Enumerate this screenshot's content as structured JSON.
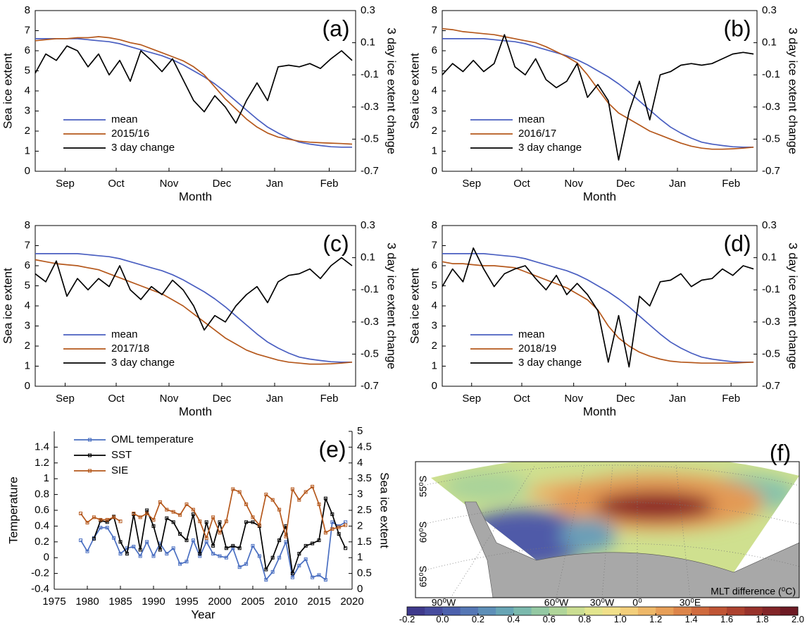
{
  "chart_data": [
    {
      "type": "line",
      "title": "(a)",
      "xlabel": "Month",
      "ylabel": "Sea ice extent",
      "y2label": "3 day ice extent change",
      "legend": "lower left",
      "x": [
        0,
        6,
        12,
        18,
        24,
        30,
        36,
        42,
        48,
        54,
        60,
        66,
        72,
        78,
        84,
        90,
        96,
        102,
        108,
        114,
        120,
        126,
        132,
        138,
        144,
        150,
        156,
        162,
        168,
        174,
        180
      ],
      "xlim": [
        0,
        182
      ],
      "xticks": [
        {
          "value": 17,
          "label": "Sep"
        },
        {
          "value": 46,
          "label": "Oct"
        },
        {
          "value": 76,
          "label": "Nov"
        },
        {
          "value": 106,
          "label": "Dec"
        },
        {
          "value": 136,
          "label": "Jan"
        },
        {
          "value": 167,
          "label": "Feb"
        }
      ],
      "ylim": [
        0,
        8
      ],
      "yticks": [
        0,
        1,
        2,
        3,
        4,
        5,
        6,
        7,
        8
      ],
      "y2lim": [
        -0.7,
        0.3
      ],
      "y2ticks": [
        -0.7,
        -0.5,
        -0.3,
        -0.1,
        0.1,
        0.3
      ],
      "series": [
        {
          "name": "mean",
          "color": "#4a5fc1",
          "values": [
            6.6,
            6.6,
            6.6,
            6.6,
            6.6,
            6.55,
            6.5,
            6.45,
            6.35,
            6.2,
            6.05,
            5.9,
            5.75,
            5.55,
            5.3,
            5.0,
            4.7,
            4.35,
            3.95,
            3.5,
            3.05,
            2.6,
            2.2,
            1.9,
            1.65,
            1.45,
            1.35,
            1.28,
            1.22,
            1.2,
            1.2
          ]
        },
        {
          "name": "2015/16",
          "color": "#b5581c",
          "values": [
            6.5,
            6.55,
            6.6,
            6.6,
            6.65,
            6.65,
            6.7,
            6.65,
            6.55,
            6.4,
            6.3,
            6.1,
            5.9,
            5.7,
            5.5,
            5.2,
            4.8,
            4.2,
            3.6,
            3.1,
            2.6,
            2.2,
            1.9,
            1.7,
            1.6,
            1.5,
            1.45,
            1.42,
            1.4,
            1.38,
            1.35
          ]
        },
        {
          "name": "3 day change",
          "color": "#000000",
          "axis": "y2",
          "values": [
            -0.09,
            0.03,
            -0.01,
            0.08,
            0.05,
            -0.05,
            0.03,
            -0.1,
            -0.01,
            -0.14,
            0.05,
            -0.01,
            -0.08,
            0,
            -0.13,
            -0.26,
            -0.33,
            -0.23,
            -0.3,
            -0.4,
            -0.26,
            -0.15,
            -0.26,
            -0.05,
            -0.04,
            -0.05,
            -0.03,
            -0.06,
            0,
            0.05,
            -0.01
          ]
        }
      ]
    },
    {
      "type": "line",
      "title": "(b)",
      "xlabel": "Month",
      "ylabel": "Sea ice extent",
      "y2label": "3 day ice extent change",
      "legend": "lower left",
      "x": [
        0,
        6,
        12,
        18,
        24,
        30,
        36,
        42,
        48,
        54,
        60,
        66,
        72,
        78,
        84,
        90,
        96,
        102,
        108,
        114,
        120,
        126,
        132,
        138,
        144,
        150,
        156,
        162,
        168,
        174,
        180
      ],
      "xlim": [
        0,
        182
      ],
      "xticks": [
        {
          "value": 17,
          "label": "Sep"
        },
        {
          "value": 46,
          "label": "Oct"
        },
        {
          "value": 76,
          "label": "Nov"
        },
        {
          "value": 106,
          "label": "Dec"
        },
        {
          "value": 136,
          "label": "Jan"
        },
        {
          "value": 167,
          "label": "Feb"
        }
      ],
      "ylim": [
        0,
        8
      ],
      "yticks": [
        0,
        1,
        2,
        3,
        4,
        5,
        6,
        7,
        8
      ],
      "y2lim": [
        -0.7,
        0.3
      ],
      "y2ticks": [
        -0.7,
        -0.5,
        -0.3,
        -0.1,
        0.1,
        0.3
      ],
      "series": [
        {
          "name": "mean",
          "color": "#4a5fc1",
          "values": [
            6.6,
            6.6,
            6.6,
            6.6,
            6.6,
            6.55,
            6.5,
            6.45,
            6.35,
            6.2,
            6.05,
            5.9,
            5.75,
            5.55,
            5.3,
            5.0,
            4.7,
            4.35,
            3.95,
            3.5,
            3.05,
            2.6,
            2.2,
            1.9,
            1.65,
            1.45,
            1.35,
            1.28,
            1.22,
            1.2,
            1.2
          ]
        },
        {
          "name": "2016/17",
          "color": "#b5581c",
          "values": [
            7.1,
            7.05,
            6.95,
            6.9,
            6.85,
            6.8,
            6.7,
            6.6,
            6.5,
            6.4,
            6.2,
            5.95,
            5.7,
            5.4,
            4.8,
            4.1,
            3.4,
            2.9,
            2.6,
            2.3,
            2.0,
            1.8,
            1.6,
            1.4,
            1.25,
            1.15,
            1.1,
            1.1,
            1.12,
            1.15,
            1.2
          ]
        },
        {
          "name": "3 day change",
          "color": "#000000",
          "axis": "y2",
          "values": [
            -0.1,
            -0.03,
            -0.08,
            -0.01,
            -0.08,
            -0.03,
            0.15,
            -0.05,
            -0.1,
            0,
            -0.13,
            -0.18,
            -0.14,
            -0.03,
            -0.24,
            -0.16,
            -0.26,
            -0.63,
            -0.33,
            -0.14,
            -0.38,
            -0.1,
            -0.08,
            -0.04,
            -0.03,
            -0.04,
            -0.03,
            0,
            0.03,
            0.04,
            0.03
          ]
        }
      ]
    },
    {
      "type": "line",
      "title": "(c)",
      "xlabel": "Month",
      "ylabel": "Sea ice extent",
      "y2label": "3 day ice extent change",
      "legend": "lower left",
      "x": [
        0,
        6,
        12,
        18,
        24,
        30,
        36,
        42,
        48,
        54,
        60,
        66,
        72,
        78,
        84,
        90,
        96,
        102,
        108,
        114,
        120,
        126,
        132,
        138,
        144,
        150,
        156,
        162,
        168,
        174,
        180
      ],
      "xlim": [
        0,
        182
      ],
      "xticks": [
        {
          "value": 17,
          "label": "Sep"
        },
        {
          "value": 46,
          "label": "Oct"
        },
        {
          "value": 76,
          "label": "Nov"
        },
        {
          "value": 106,
          "label": "Dec"
        },
        {
          "value": 136,
          "label": "Jan"
        },
        {
          "value": 167,
          "label": "Feb"
        }
      ],
      "ylim": [
        0,
        8
      ],
      "yticks": [
        0,
        1,
        2,
        3,
        4,
        5,
        6,
        7,
        8
      ],
      "y2lim": [
        -0.7,
        0.3
      ],
      "y2ticks": [
        -0.7,
        -0.5,
        -0.3,
        -0.1,
        0.1,
        0.3
      ],
      "series": [
        {
          "name": "mean",
          "color": "#4a5fc1",
          "values": [
            6.6,
            6.6,
            6.6,
            6.6,
            6.6,
            6.55,
            6.5,
            6.45,
            6.35,
            6.2,
            6.05,
            5.9,
            5.75,
            5.55,
            5.3,
            5.0,
            4.7,
            4.35,
            3.95,
            3.5,
            3.05,
            2.6,
            2.2,
            1.9,
            1.65,
            1.45,
            1.35,
            1.28,
            1.22,
            1.2,
            1.2
          ]
        },
        {
          "name": "2017/18",
          "color": "#b5581c",
          "values": [
            6.3,
            6.2,
            6.1,
            6.05,
            6.0,
            5.9,
            5.8,
            5.6,
            5.4,
            5.2,
            5.0,
            4.8,
            4.6,
            4.3,
            4.0,
            3.6,
            3.2,
            2.8,
            2.4,
            2.1,
            1.8,
            1.6,
            1.45,
            1.3,
            1.2,
            1.15,
            1.1,
            1.1,
            1.12,
            1.15,
            1.2
          ]
        },
        {
          "name": "3 day change",
          "color": "#000000",
          "axis": "y2",
          "values": [
            0,
            -0.05,
            0.08,
            -0.14,
            -0.03,
            -0.1,
            -0.03,
            -0.08,
            0.05,
            -0.1,
            -0.16,
            -0.08,
            -0.13,
            -0.04,
            -0.1,
            -0.2,
            -0.35,
            -0.26,
            -0.3,
            -0.2,
            -0.13,
            -0.08,
            -0.18,
            -0.05,
            -0.01,
            0,
            0.03,
            -0.03,
            0.05,
            0.1,
            0.05
          ]
        }
      ]
    },
    {
      "type": "line",
      "title": "(d)",
      "xlabel": "Month",
      "ylabel": "Sea ice extent",
      "y2label": "3 day ice extent change",
      "legend": "lower left",
      "x": [
        0,
        6,
        12,
        18,
        24,
        30,
        36,
        42,
        48,
        54,
        60,
        66,
        72,
        78,
        84,
        90,
        96,
        102,
        108,
        114,
        120,
        126,
        132,
        138,
        144,
        150,
        156,
        162,
        168,
        174,
        180
      ],
      "xlim": [
        0,
        182
      ],
      "xticks": [
        {
          "value": 17,
          "label": "Sep"
        },
        {
          "value": 46,
          "label": "Oct"
        },
        {
          "value": 76,
          "label": "Nov"
        },
        {
          "value": 106,
          "label": "Dec"
        },
        {
          "value": 136,
          "label": "Jan"
        },
        {
          "value": 167,
          "label": "Feb"
        }
      ],
      "ylim": [
        0,
        8
      ],
      "yticks": [
        0,
        1,
        2,
        3,
        4,
        5,
        6,
        7,
        8
      ],
      "y2lim": [
        -0.7,
        0.3
      ],
      "y2ticks": [
        -0.7,
        -0.5,
        -0.3,
        -0.1,
        0.1,
        0.3
      ],
      "series": [
        {
          "name": "mean",
          "color": "#4a5fc1",
          "values": [
            6.6,
            6.6,
            6.6,
            6.6,
            6.6,
            6.55,
            6.5,
            6.45,
            6.35,
            6.2,
            6.05,
            5.9,
            5.75,
            5.55,
            5.3,
            5.0,
            4.7,
            4.35,
            3.95,
            3.5,
            3.05,
            2.6,
            2.2,
            1.9,
            1.65,
            1.45,
            1.35,
            1.28,
            1.22,
            1.2,
            1.2
          ]
        },
        {
          "name": "2018/19",
          "color": "#b5581c",
          "values": [
            6.2,
            6.1,
            6.1,
            6.05,
            6.0,
            6.0,
            5.95,
            5.9,
            5.7,
            5.5,
            5.3,
            5.1,
            4.9,
            4.6,
            4.3,
            3.8,
            3.0,
            2.4,
            2.0,
            1.7,
            1.5,
            1.35,
            1.25,
            1.2,
            1.18,
            1.15,
            1.15,
            1.15,
            1.15,
            1.18,
            1.2
          ]
        },
        {
          "name": "3 day change",
          "color": "#000000",
          "axis": "y2",
          "values": [
            -0.08,
            0.03,
            -0.05,
            0.16,
            0.03,
            -0.08,
            0,
            0.03,
            0.05,
            -0.03,
            -0.1,
            -0.01,
            -0.13,
            -0.06,
            -0.13,
            -0.23,
            -0.55,
            -0.26,
            -0.58,
            -0.14,
            -0.2,
            -0.05,
            -0.04,
            0,
            -0.08,
            -0.04,
            -0.03,
            0.03,
            -0.01,
            0.05,
            0.03
          ]
        }
      ]
    },
    {
      "type": "line",
      "title": "(e)",
      "xlabel": "Year",
      "ylabel": "Temperature",
      "y2label": "Sea ice extent",
      "legend": "upper left",
      "markers": true,
      "x": [
        1979,
        1980,
        1981,
        1982,
        1983,
        1984,
        1985,
        1986,
        1987,
        1988,
        1989,
        1990,
        1991,
        1992,
        1993,
        1994,
        1995,
        1996,
        1997,
        1998,
        1999,
        2000,
        2001,
        2002,
        2003,
        2004,
        2005,
        2006,
        2007,
        2008,
        2009,
        2010,
        2011,
        2012,
        2013,
        2014,
        2015,
        2016,
        2017,
        2018,
        2019
      ],
      "xlim": [
        1975,
        2020
      ],
      "xticks": [
        1975,
        1980,
        1985,
        1990,
        1995,
        2000,
        2005,
        2010,
        2015,
        2020
      ],
      "ylim": [
        -0.4,
        1.6
      ],
      "yticks": [
        -0.4,
        -0.2,
        0,
        0.2,
        0.4,
        0.6,
        0.8,
        1,
        1.2,
        1.4
      ],
      "y2lim": [
        0,
        5
      ],
      "y2ticks": [
        0,
        0.5,
        1,
        1.5,
        2,
        2.5,
        3,
        3.5,
        4,
        4.5,
        5
      ],
      "series": [
        {
          "name": "OML temperature",
          "color": "#4a6fc1",
          "values": [
            0.22,
            0.08,
            0.25,
            0.38,
            0.38,
            0.25,
            0.05,
            0.12,
            0.14,
            0.02,
            0.2,
            0.02,
            0.18,
            0.05,
            0.12,
            -0.08,
            -0.05,
            0.22,
            0.02,
            0.2,
            0.05,
            0.02,
            0,
            0.12,
            -0.12,
            -0.08,
            0.15,
            0.02,
            -0.28,
            -0.18,
            0,
            0.2,
            -0.25,
            -0.1,
            -0.02,
            -0.25,
            -0.22,
            -0.28,
            0.45,
            0.4,
            0.45
          ]
        },
        {
          "name": "SST",
          "color": "#000000",
          "values": [
            null,
            null,
            0.24,
            0.47,
            0.45,
            0.52,
            0.2,
            0.05,
            0.55,
            0.1,
            0.6,
            0.4,
            0.1,
            0.5,
            0.45,
            0.3,
            0.22,
            0.55,
            0.05,
            0.45,
            0.15,
            0.45,
            0.12,
            0.15,
            0.12,
            0.45,
            0.45,
            0.4,
            -0.15,
            0,
            0.22,
            0.4,
            -0.2,
            0.05,
            0.15,
            0.18,
            0.22,
            0.75,
            0.55,
            0.3,
            0.12
          ]
        },
        {
          "name": "SIE",
          "color": "#b5581c",
          "axis": "y2",
          "values": [
            2.4,
            2.11,
            2.28,
            2.2,
            2.2,
            2.28,
            2.15,
            null,
            2.4,
            2.28,
            2.4,
            2.2,
            2.76,
            2.52,
            2.45,
            2.35,
            2.69,
            2.52,
            2.15,
            1.62,
            2.28,
            1.79,
            2.15,
            3.17,
            3.08,
            2.69,
            2.28,
            2.03,
            3.0,
            2.83,
            2.52,
            1.67,
            3.17,
            2.83,
            3.08,
            3.25,
            2.69,
            1.79,
            1.91,
            1.96,
            2.03
          ]
        }
      ]
    },
    {
      "type": "map",
      "title": "(f)",
      "lat_labels": [
        "55⁰S",
        "60⁰S",
        "65⁰S"
      ],
      "lon_labels": [
        "90⁰W",
        "60⁰W",
        "30⁰W",
        "0⁰",
        "30⁰E"
      ],
      "colorbar": {
        "label": "MLT difference (⁰C)",
        "lim": [
          -0.2,
          2.0
        ],
        "ticks": [
          -0.2,
          {
            "value": 0,
            "label": "0.0"
          },
          0.2,
          0.4,
          0.6,
          0.8,
          {
            "value": 1,
            "label": "1.0"
          },
          1.2,
          1.4,
          1.6,
          1.8,
          {
            "value": 2,
            "label": "2.0"
          }
        ],
        "colors": [
          "#3f3a8c",
          "#474c9e",
          "#4d61ad",
          "#5577b5",
          "#5e8fb8",
          "#68a5b5",
          "#7bb9ad",
          "#94c9a3",
          "#b0d59a",
          "#cbde92",
          "#e2e58e",
          "#f1e08a",
          "#f3cf7b",
          "#eeb869",
          "#e79f58",
          "#dd854a",
          "#d06b3e",
          "#c05535",
          "#ad422f",
          "#98322b",
          "#832528",
          "#6e1a24"
        ]
      }
    }
  ]
}
